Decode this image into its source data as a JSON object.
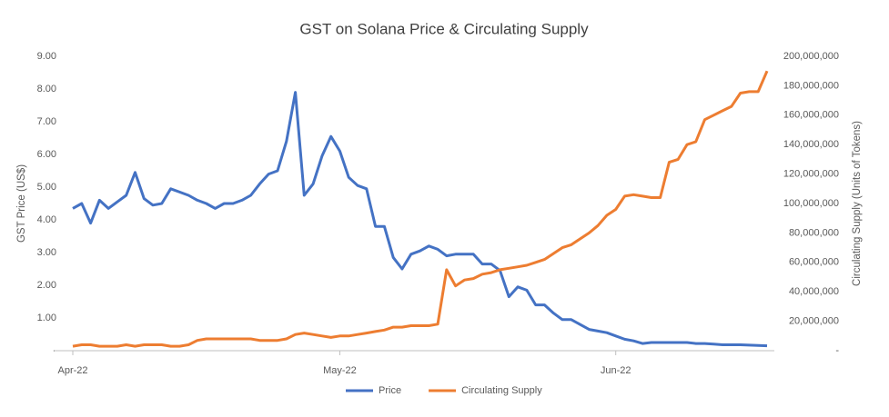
{
  "chart_data": {
    "type": "line",
    "title": "GST on Solana Price & Circulating Supply",
    "y_label": "GST Price (US$)",
    "y2_label": "Circulating Supply (Units of Tokens)",
    "categories": [
      "Apr-22",
      null,
      null,
      null,
      null,
      null,
      null,
      null,
      null,
      null,
      null,
      null,
      null,
      null,
      null,
      null,
      null,
      null,
      null,
      null,
      null,
      null,
      null,
      null,
      null,
      null,
      null,
      null,
      null,
      null,
      "May-22",
      null,
      null,
      null,
      null,
      null,
      null,
      null,
      null,
      null,
      null,
      null,
      null,
      null,
      null,
      null,
      null,
      null,
      null,
      null,
      null,
      null,
      null,
      null,
      null,
      null,
      null,
      null,
      null,
      null,
      null,
      "Jun-22",
      null,
      null,
      null,
      null,
      null,
      null,
      null,
      null,
      null,
      null,
      null,
      null,
      null,
      null,
      null,
      null,
      null
    ],
    "series": [
      {
        "name": "Price",
        "color": "#4472c4",
        "axis": "y",
        "values": [
          4.35,
          4.5,
          3.9,
          4.6,
          4.35,
          4.55,
          4.75,
          5.45,
          4.65,
          4.45,
          4.5,
          4.95,
          4.85,
          4.75,
          4.6,
          4.5,
          4.35,
          4.5,
          4.5,
          4.6,
          4.75,
          5.1,
          5.4,
          5.5,
          6.4,
          7.9,
          4.75,
          5.1,
          5.95,
          6.55,
          6.1,
          5.3,
          5.05,
          4.95,
          3.8,
          3.8,
          2.85,
          2.5,
          2.95,
          3.05,
          3.2,
          3.1,
          2.9,
          2.95,
          2.95,
          2.95,
          2.65,
          2.65,
          2.45,
          1.65,
          1.95,
          1.85,
          1.4,
          1.4,
          1.15,
          0.95,
          0.95,
          0.8,
          0.65,
          0.6,
          0.55,
          0.45,
          0.35,
          0.3,
          0.22,
          0.25,
          0.25,
          0.25,
          0.25,
          0.25,
          0.22,
          0.22,
          0.2,
          0.18,
          0.18,
          0.18,
          0.17,
          0.16,
          0.15
        ]
      },
      {
        "name": "Circulating Supply",
        "color": "#ed7d31",
        "axis": "y2",
        "values": [
          3000000,
          4000000,
          4000000,
          3000000,
          3000000,
          3000000,
          4000000,
          3000000,
          4000000,
          4000000,
          4000000,
          3000000,
          3000000,
          4000000,
          7000000,
          8000000,
          8000000,
          8000000,
          8000000,
          8000000,
          8000000,
          7000000,
          7000000,
          7000000,
          8000000,
          11000000,
          12000000,
          11000000,
          10000000,
          9000000,
          10000000,
          10000000,
          11000000,
          12000000,
          13000000,
          14000000,
          16000000,
          16000000,
          17000000,
          17000000,
          17000000,
          18000000,
          55000000,
          44000000,
          48000000,
          49000000,
          52000000,
          53000000,
          55000000,
          56000000,
          57000000,
          58000000,
          60000000,
          62000000,
          66000000,
          70000000,
          72000000,
          76000000,
          80000000,
          85000000,
          92000000,
          96000000,
          105000000,
          106000000,
          105000000,
          104000000,
          104000000,
          128000000,
          130000000,
          140000000,
          142000000,
          157000000,
          160000000,
          163000000,
          166000000,
          175000000,
          176000000,
          176000000,
          190000000
        ]
      }
    ],
    "ylim": [
      0,
      9
    ],
    "yticks": [
      {
        "value": 0,
        "label": "-"
      },
      {
        "value": 1,
        "label": "1.00"
      },
      {
        "value": 2,
        "label": "2.00"
      },
      {
        "value": 3,
        "label": "3.00"
      },
      {
        "value": 4,
        "label": "4.00"
      },
      {
        "value": 5,
        "label": "5.00"
      },
      {
        "value": 6,
        "label": "6.00"
      },
      {
        "value": 7,
        "label": "7.00"
      },
      {
        "value": 8,
        "label": "8.00"
      },
      {
        "value": 9,
        "label": "9.00"
      }
    ],
    "y2lim": [
      0,
      200000000
    ],
    "y2ticks": [
      {
        "value": 0,
        "label": "-"
      },
      {
        "value": 20000000,
        "label": "20,000,000"
      },
      {
        "value": 40000000,
        "label": "40,000,000"
      },
      {
        "value": 60000000,
        "label": "60,000,000"
      },
      {
        "value": 80000000,
        "label": "80,000,000"
      },
      {
        "value": 100000000,
        "label": "100,000,000"
      },
      {
        "value": 120000000,
        "label": "120,000,000"
      },
      {
        "value": 140000000,
        "label": "140,000,000"
      },
      {
        "value": 160000000,
        "label": "160,000,000"
      },
      {
        "value": 180000000,
        "label": "180,000,000"
      },
      {
        "value": 200000000,
        "label": "200,000,000"
      }
    ],
    "grid": false,
    "legend": "bottom"
  }
}
